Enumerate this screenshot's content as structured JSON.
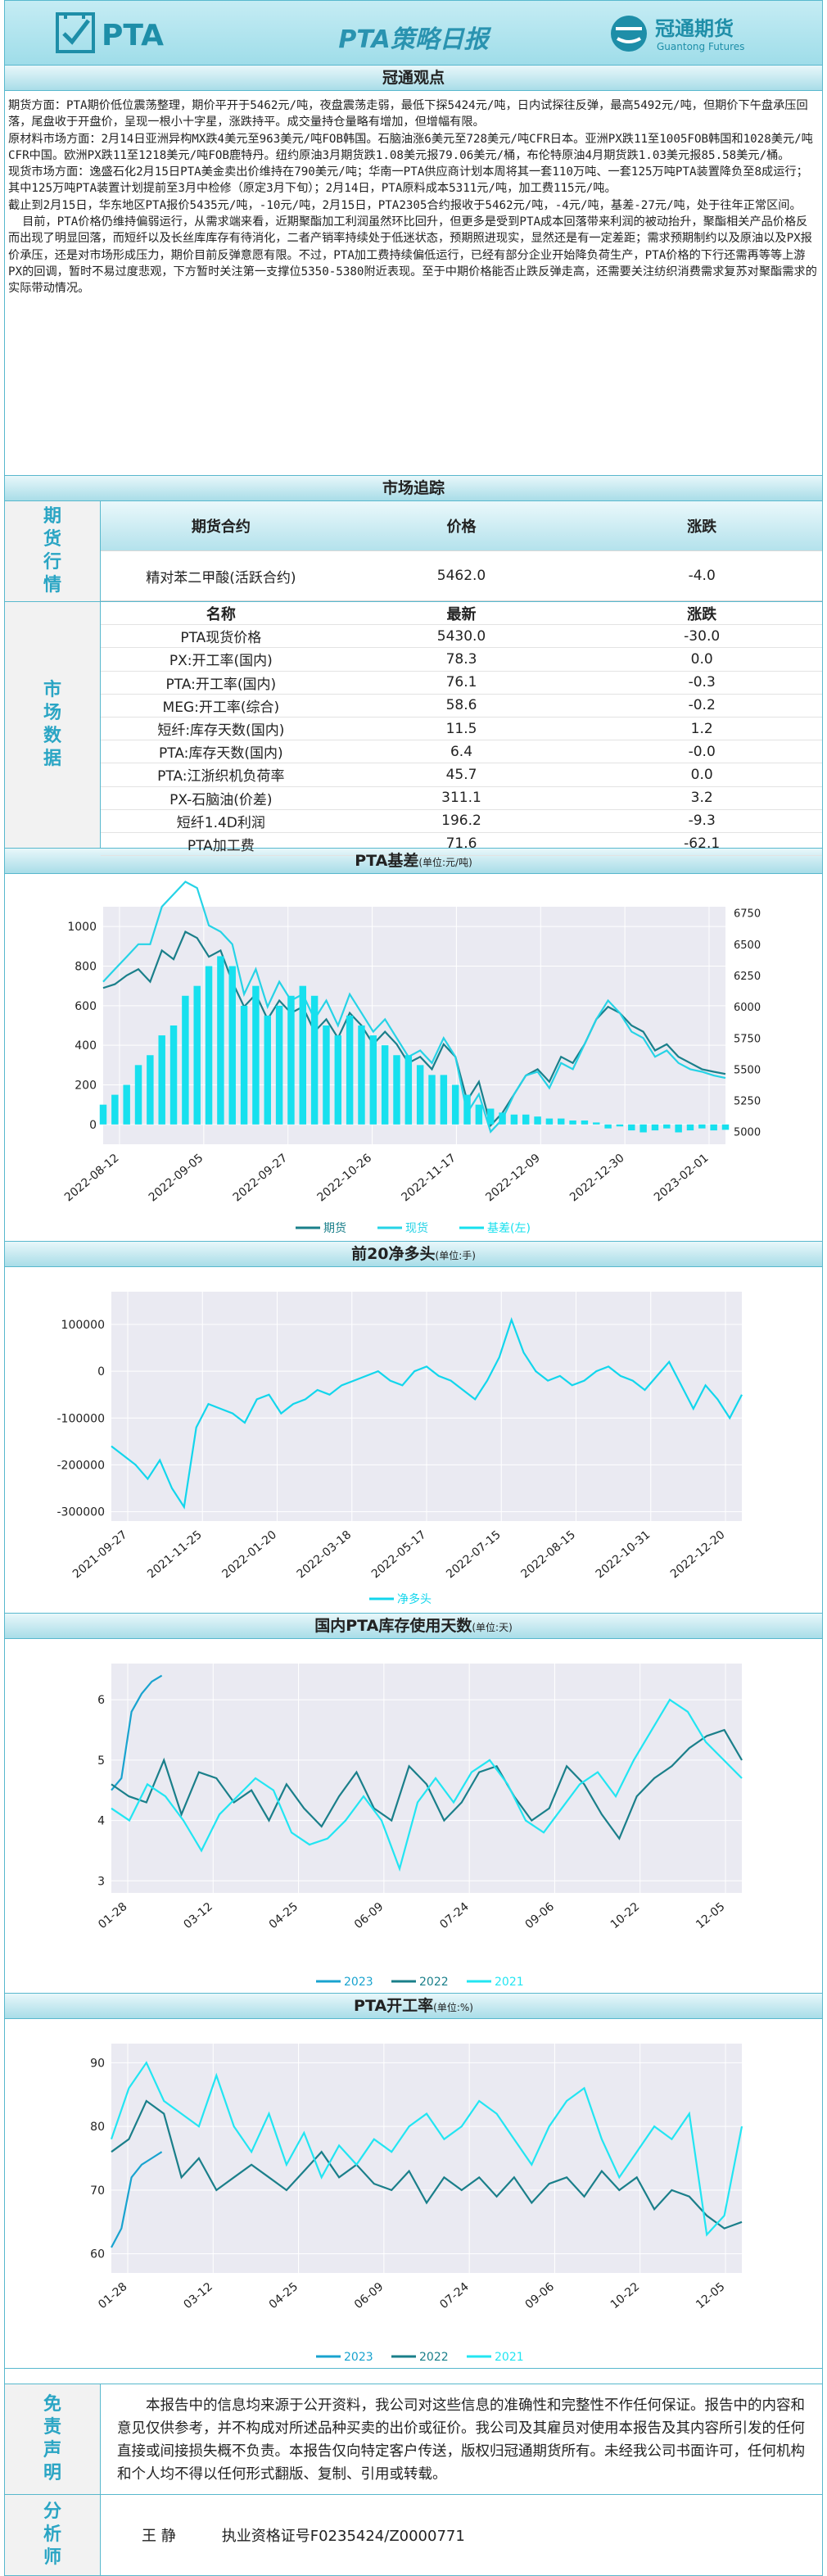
{
  "header": {
    "brand": "PTA",
    "title": "PTA策略日报",
    "company_cn": "冠通期货",
    "company_en": "Guantong Futures"
  },
  "opinion": {
    "title": "冠通观点",
    "text": "期货方面：PTA期价低位震荡整理，期价平开于5462元/吨，夜盘震荡走弱，最低下探5424元/吨，日内试探往反弹，最高5492元/吨，但期价下午盘承压回落，尾盘收于开盘价，呈现一根小十字星，涨跌持平。成交量持仓量略有增加，但增幅有限。\n原材料市场方面：2月14日亚洲异构MX跌4美元至963美元/吨FOB韩国。石脑油涨6美元至728美元/吨CFR日本。亚洲PX跌11至1005FOB韩国和1028美元/吨CFR中国。欧洲PX跌11至1218美元/吨FOB鹿特丹。纽约原油3月期货跌1.08美元报79.06美元/桶，布伦特原油4月期货跌1.03美元报85.58美元/桶。\n现货市场方面：逸盛石化2月15日PTA美金卖出价维持在790美元/吨；华南一PTA供应商计划本周将其一套110万吨、一套125万吨PTA装置降负至8成运行；其中125万吨PTA装置计划提前至3月中检修（原定3月下旬）；2月14日，PTA原料成本5311元/吨，加工费115元/吨。\n截止到2月15日，华东地区PTA报价5435元/吨，-10元/吨，2月15日，PTA2305合约报收于5462元/吨，-4元/吨，基差-27元/吨，处于往年正常区间。\n  目前，PTA价格仍维持偏弱运行，从需求端来看，近期聚酯加工利润虽然环比回升，但更多是受到PTA成本回落带来利润的被动抬升，聚酯相关产品价格反而出现了明显回落，而短纤以及长丝库库存有待消化，二者产销率持续处于低迷状态，预期照进现实，显然还是有一定差距；需求预期制约以及原油以及PX报价承压，还是对市场形成压力，期价目前反弹意愿有限。不过，PTA加工费持续偏低运行，已经有部分企业开始降负荷生产，PTA价格的下行还需再等等上游PX的回调，暂时不易过度悲观，下方暂时关注第一支撑位5350-5380附近表现。至于中期价格能否止跌反弹走高，还需要关注纺织消费需求复苏对聚酯需求的实际带动情况。"
  },
  "market": {
    "title": "市场追踪",
    "futures_label": "期货行情",
    "futures_headers": [
      "期货合约",
      "价格",
      "涨跌"
    ],
    "futures_rows": [
      [
        "精对苯二甲酸(活跃合约)",
        "5462.0",
        "-4.0"
      ]
    ],
    "data_label": "市场数据",
    "data_headers": [
      "名称",
      "最新",
      "涨跌"
    ],
    "data_rows": [
      [
        "PTA现货价格",
        "5430.0",
        "-30.0"
      ],
      [
        "PX:开工率(国内)",
        "78.3",
        "0.0"
      ],
      [
        "PTA:开工率(国内)",
        "76.1",
        "-0.3"
      ],
      [
        "MEG:开工率(综合)",
        "58.6",
        "-0.2"
      ],
      [
        "短纤:库存天数(国内)",
        "11.5",
        "1.2"
      ],
      [
        "PTA:库存天数(国内)",
        "6.4",
        "-0.0"
      ],
      [
        "PTA:江浙织机负荷率",
        "45.7",
        "0.0"
      ],
      [
        "PX-石脑油(价差)",
        "311.1",
        "3.2"
      ],
      [
        "短纤1.4D利润",
        "196.2",
        "-9.3"
      ],
      [
        "PTA加工费",
        "71.6",
        "-62.1"
      ]
    ]
  },
  "charts": {
    "basis": {
      "title": "PTA基差",
      "unit": "(单位:元/吨)"
    },
    "net": {
      "title": "前20净多头",
      "unit": "(单位:手)"
    },
    "inventory": {
      "title": "国内PTA库存使用天数",
      "unit": "(单位:天)"
    },
    "rate": {
      "title": "PTA开工率",
      "unit": "(单位:%)"
    }
  },
  "chart_data": [
    {
      "type": "bar",
      "title": "PTA基差",
      "x_ticks": [
        "2022-08-12",
        "2022-09-05",
        "2022-09-27",
        "2022-10-26",
        "2022-11-17",
        "2022-12-09",
        "2022-12-30",
        "2023-02-01"
      ],
      "y_left_ticks": [
        0,
        200,
        400,
        600,
        800,
        1000
      ],
      "y_right_ticks": [
        5000,
        5250,
        5500,
        5750,
        6000,
        6250,
        6500,
        6750
      ],
      "series": [
        {
          "name": "期货",
          "type": "line",
          "color": "#1a7f8a",
          "axis": "right",
          "values": [
            6150,
            6180,
            6250,
            6300,
            6200,
            6450,
            6380,
            6600,
            6550,
            6400,
            6450,
            6200,
            6000,
            6100,
            5900,
            6050,
            5950,
            6000,
            5800,
            5900,
            5750,
            5950,
            5850,
            5700,
            5800,
            5700,
            5550,
            5600,
            5500,
            5700,
            5600,
            5250,
            5400,
            5050,
            5150,
            5300,
            5450,
            5500,
            5400,
            5600,
            5550,
            5700,
            5900,
            6000,
            5950,
            5850,
            5800,
            5650,
            5700,
            5600,
            5550,
            5500,
            5480,
            5462
          ]
        },
        {
          "name": "现货",
          "type": "line",
          "color": "#26d3e6",
          "axis": "right",
          "values": [
            6200,
            6300,
            6400,
            6500,
            6500,
            6800,
            6900,
            7000,
            6950,
            6650,
            6600,
            6500,
            6100,
            6300,
            6000,
            6200,
            6050,
            6100,
            5900,
            6050,
            5850,
            6100,
            5950,
            5800,
            5900,
            5750,
            5600,
            5650,
            5550,
            5750,
            5600,
            5150,
            5300,
            5000,
            5100,
            5300,
            5450,
            5480,
            5350,
            5550,
            5500,
            5700,
            5900,
            6050,
            5950,
            5800,
            5750,
            5600,
            5650,
            5550,
            5500,
            5480,
            5450,
            5430
          ]
        },
        {
          "name": "基差(左)",
          "type": "bar",
          "color": "#17e0ee",
          "axis": "left",
          "values": [
            100,
            150,
            200,
            300,
            350,
            450,
            500,
            650,
            700,
            800,
            850,
            800,
            600,
            700,
            550,
            600,
            650,
            700,
            650,
            500,
            450,
            550,
            500,
            450,
            400,
            350,
            350,
            300,
            250,
            250,
            200,
            150,
            100,
            80,
            60,
            50,
            50,
            40,
            30,
            30,
            20,
            20,
            10,
            -20,
            -10,
            -30,
            -40,
            -30,
            -20,
            -40,
            -30,
            -20,
            -30,
            -27
          ]
        }
      ]
    },
    {
      "type": "line",
      "title": "前20净多头",
      "x_ticks": [
        "2021-09-27",
        "2021-11-25",
        "2022-01-20",
        "2022-03-18",
        "2022-05-17",
        "2022-07-15",
        "2022-08-15",
        "2022-10-31",
        "2022-12-20"
      ],
      "y_ticks": [
        -300000,
        -200000,
        -100000,
        0,
        100000
      ],
      "series": [
        {
          "name": "净多头",
          "color": "#12d6ec",
          "values": [
            -160000,
            -180000,
            -200000,
            -230000,
            -190000,
            -250000,
            -290000,
            -120000,
            -70000,
            -80000,
            -90000,
            -110000,
            -60000,
            -50000,
            -90000,
            -70000,
            -60000,
            -40000,
            -50000,
            -30000,
            -20000,
            -10000,
            0,
            -20000,
            -30000,
            0,
            10000,
            -10000,
            -20000,
            -40000,
            -60000,
            -20000,
            30000,
            110000,
            40000,
            0,
            -20000,
            -10000,
            -30000,
            -20000,
            0,
            10000,
            -10000,
            -20000,
            -40000,
            -10000,
            20000,
            -30000,
            -80000,
            -30000,
            -60000,
            -100000,
            -50000
          ]
        }
      ]
    },
    {
      "type": "line",
      "title": "国内PTA库存使用天数",
      "x_ticks": [
        "01-28",
        "03-12",
        "04-25",
        "06-09",
        "07-24",
        "09-06",
        "10-22",
        "12-05"
      ],
      "y_ticks": [
        3,
        4,
        5,
        6
      ],
      "series": [
        {
          "name": "2023",
          "color": "#19a3cf",
          "values": [
            4.5,
            4.7,
            5.8,
            6.1,
            6.3,
            6.4
          ]
        },
        {
          "name": "2022",
          "color": "#1a7f8a",
          "values": [
            4.6,
            4.4,
            4.3,
            5.0,
            4.1,
            4.8,
            4.7,
            4.3,
            4.5,
            4.0,
            4.6,
            4.2,
            3.9,
            4.4,
            4.8,
            4.2,
            4.0,
            4.9,
            4.6,
            4.0,
            4.3,
            4.8,
            4.9,
            4.4,
            4.0,
            4.2,
            4.9,
            4.6,
            4.1,
            3.7,
            4.4,
            4.7,
            4.9,
            5.2,
            5.4,
            5.5,
            5.0
          ]
        },
        {
          "name": "2021",
          "color": "#22e5f2",
          "values": [
            4.2,
            4.0,
            4.6,
            4.4,
            4.0,
            3.5,
            4.1,
            4.4,
            4.7,
            4.5,
            3.8,
            3.6,
            3.7,
            4.0,
            4.4,
            4.0,
            3.2,
            4.3,
            4.7,
            4.3,
            4.8,
            5.0,
            4.6,
            4.0,
            3.8,
            4.2,
            4.6,
            4.8,
            4.4,
            5.0,
            5.5,
            6.0,
            5.8,
            5.3,
            5.0,
            4.7
          ]
        }
      ]
    },
    {
      "type": "line",
      "title": "PTA开工率",
      "x_ticks": [
        "01-28",
        "03-12",
        "04-25",
        "06-09",
        "07-24",
        "09-06",
        "10-22",
        "12-05"
      ],
      "y_ticks": [
        60,
        70,
        80,
        90
      ],
      "series": [
        {
          "name": "2023",
          "color": "#19a3cf",
          "values": [
            61,
            64,
            72,
            74,
            75,
            76
          ]
        },
        {
          "name": "2022",
          "color": "#1a7f8a",
          "values": [
            76,
            78,
            84,
            82,
            72,
            75,
            70,
            72,
            74,
            72,
            70,
            73,
            76,
            72,
            74,
            71,
            70,
            73,
            68,
            72,
            70,
            72,
            69,
            72,
            68,
            71,
            72,
            69,
            73,
            70,
            72,
            67,
            70,
            69,
            66,
            64,
            65
          ]
        },
        {
          "name": "2021",
          "color": "#22e5f2",
          "values": [
            78,
            86,
            90,
            84,
            82,
            80,
            88,
            80,
            76,
            82,
            74,
            79,
            72,
            77,
            74,
            78,
            76,
            80,
            82,
            78,
            80,
            84,
            82,
            78,
            74,
            80,
            84,
            86,
            78,
            72,
            76,
            80,
            78,
            82,
            63,
            66,
            80
          ]
        }
      ]
    }
  ],
  "disclaimer": {
    "label": "免责声明",
    "text": "本报告中的信息均来源于公开资料，我公司对这些信息的准确性和完整性不作任何保证。报告中的内容和意见仅供参考，并不构成对所述品种买卖的出价或征价。我公司及其雇员对使用本报告及其内容所引发的任何直接或间接损失概不负责。本报告仅向特定客户传送，版权归冠通期货所有。未经我公司书面许可，任何机构和个人均不得以任何形式翻版、复制、引用或转载。"
  },
  "analyst": {
    "label": "分析师",
    "name": "王 静",
    "cert": "执业资格证号F0235424/Z0000771"
  }
}
